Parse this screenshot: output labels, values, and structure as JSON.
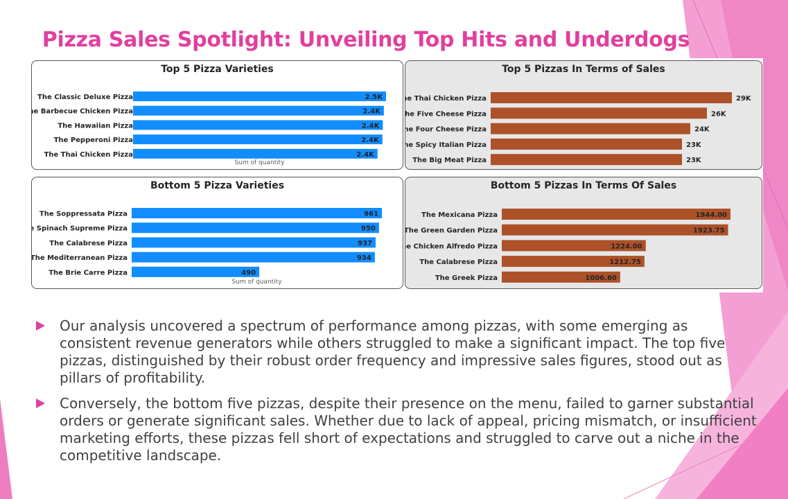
{
  "slide": {
    "title": "Pizza Sales Spotlight: Unveiling Top Hits and Underdogs",
    "accent_color": "#e0409f",
    "bullets": [
      "Our analysis uncovered a spectrum of performance among pizzas, with some emerging as consistent revenue generators while others struggled to make a significant impact. The top five pizzas, distinguished by their robust order frequency and impressive sales figures, stood out as pillars of profitability.",
      "Conversely, the bottom five pizzas, despite their presence on the menu, failed to garner substantial orders or generate significant sales. Whether due to lack of appeal, pricing mismatch, or insufficient marketing efforts, these pizzas fell short of expectations and struggled to carve out a niche in the competitive landscape."
    ]
  },
  "chart_data": [
    {
      "type": "bar",
      "orientation": "horizontal",
      "title": "Top 5 Pizza Varieties",
      "xlabel": "Sum of quantity",
      "categories": [
        "The Classic Deluxe Pizza",
        "The Barbecue Chicken Pizza",
        "The Hawaiian Pizza",
        "The Pepperoni Pizza",
        "The Thai Chicken Pizza"
      ],
      "values": [
        2453,
        2432,
        2422,
        2418,
        2371
      ],
      "labels": [
        "2.5K",
        "2.4K",
        "2.4K",
        "2.4K",
        "2.4K"
      ],
      "color": "#118dff",
      "background": "#ffffff"
    },
    {
      "type": "bar",
      "orientation": "horizontal",
      "title": "Top 5 Pizzas In Terms of Sales",
      "xlabel": "",
      "categories": [
        "The Thai Chicken Pizza",
        "The Five Cheese Pizza",
        "The Four Cheese Pizza",
        "The Spicy Italian Pizza",
        "The Big Meat Pizza"
      ],
      "values": [
        29000,
        26000,
        24000,
        23000,
        23000
      ],
      "labels": [
        "29K",
        "26K",
        "24K",
        "23K",
        "23K"
      ],
      "color": "#ad5129",
      "background": "#e7e7e7"
    },
    {
      "type": "bar",
      "orientation": "horizontal",
      "title": "Bottom 5 Pizza Varieties",
      "xlabel": "Sum of quantity",
      "categories": [
        "The Soppressata Pizza",
        "The Spinach Supreme Pizza",
        "The Calabrese Pizza",
        "The Mediterranean Pizza",
        "The Brie Carre Pizza"
      ],
      "values": [
        961,
        950,
        937,
        934,
        490
      ],
      "labels": [
        "961",
        "950",
        "937",
        "934",
        "490"
      ],
      "color": "#118dff",
      "background": "#ffffff"
    },
    {
      "type": "bar",
      "orientation": "horizontal",
      "title": "Bottom 5 Pizzas In Terms Of Sales",
      "xlabel": "",
      "categories": [
        "The Mexicana Pizza",
        "The Green Garden Pizza",
        "The Chicken Alfredo Pizza",
        "The Calabrese Pizza",
        "The Greek Pizza"
      ],
      "values": [
        1944.0,
        1923.75,
        1224.0,
        1212.75,
        1006.6
      ],
      "labels": [
        "1944.00",
        "1923.75",
        "1224.00",
        "1212.75",
        "1006.60"
      ],
      "color": "#ad5129",
      "background": "#e7e7e7"
    }
  ]
}
